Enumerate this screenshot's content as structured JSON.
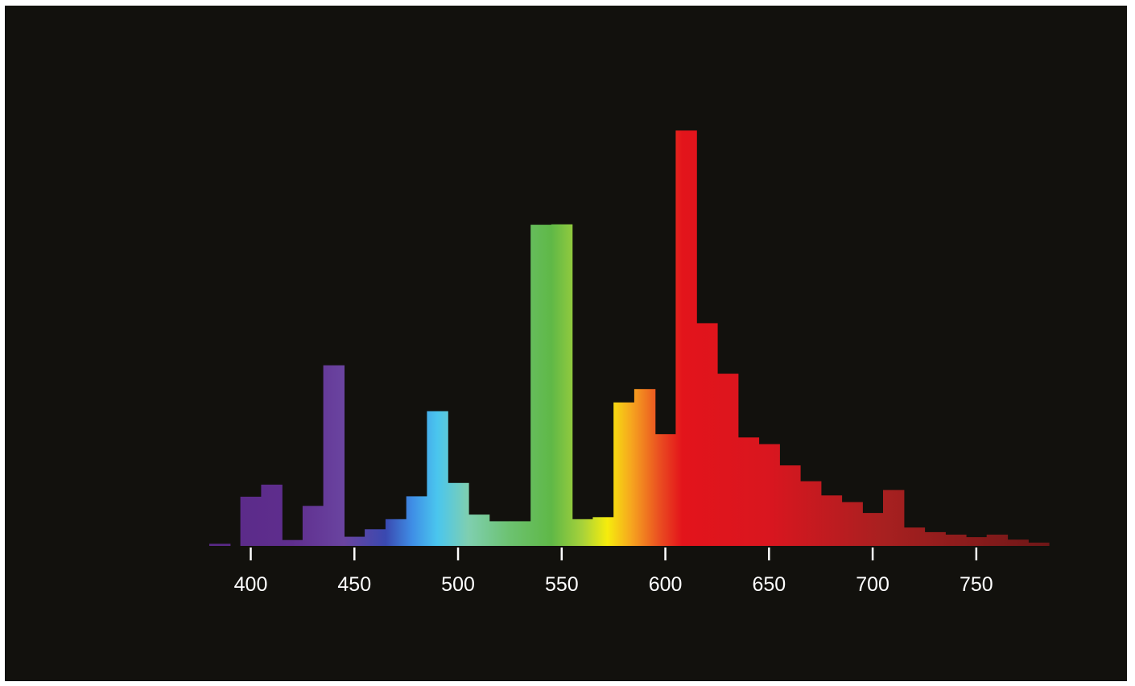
{
  "chart_data": {
    "type": "bar",
    "title": "",
    "xlabel": "",
    "ylabel": "",
    "x_unit": "",
    "xlim": [
      380,
      785
    ],
    "ylim": [
      0,
      100
    ],
    "x_ticks": [
      400,
      450,
      500,
      550,
      600,
      650,
      700,
      750
    ],
    "x_tick_labels": [
      "400",
      "450",
      "500",
      "550",
      "600",
      "650",
      "700",
      "750"
    ],
    "grid": false,
    "legend": "none",
    "bin_width_nm": 10,
    "bins": [
      {
        "start": 380,
        "value": 0.5
      },
      {
        "start": 395,
        "value": 11.8
      },
      {
        "start": 405,
        "value": 14.7
      },
      {
        "start": 415,
        "value": 1.4
      },
      {
        "start": 425,
        "value": 9.6
      },
      {
        "start": 435,
        "value": 43.3
      },
      {
        "start": 445,
        "value": 2.2
      },
      {
        "start": 455,
        "value": 4.0
      },
      {
        "start": 465,
        "value": 6.4
      },
      {
        "start": 475,
        "value": 11.9
      },
      {
        "start": 485,
        "value": 32.3
      },
      {
        "start": 495,
        "value": 15.1
      },
      {
        "start": 505,
        "value": 7.5
      },
      {
        "start": 515,
        "value": 5.9
      },
      {
        "start": 525,
        "value": 5.9
      },
      {
        "start": 535,
        "value": 77.0
      },
      {
        "start": 545,
        "value": 77.1
      },
      {
        "start": 555,
        "value": 6.4
      },
      {
        "start": 565,
        "value": 6.9
      },
      {
        "start": 575,
        "value": 34.4
      },
      {
        "start": 585,
        "value": 37.6
      },
      {
        "start": 595,
        "value": 26.8
      },
      {
        "start": 605,
        "value": 99.6
      },
      {
        "start": 615,
        "value": 53.4
      },
      {
        "start": 625,
        "value": 41.3
      },
      {
        "start": 635,
        "value": 26.0
      },
      {
        "start": 645,
        "value": 24.4
      },
      {
        "start": 655,
        "value": 19.3
      },
      {
        "start": 665,
        "value": 15.5
      },
      {
        "start": 675,
        "value": 12.1
      },
      {
        "start": 685,
        "value": 10.5
      },
      {
        "start": 695,
        "value": 7.9
      },
      {
        "start": 705,
        "value": 13.4
      },
      {
        "start": 715,
        "value": 4.4
      },
      {
        "start": 725,
        "value": 3.3
      },
      {
        "start": 735,
        "value": 2.7
      },
      {
        "start": 745,
        "value": 2.1
      },
      {
        "start": 755,
        "value": 2.7
      },
      {
        "start": 765,
        "value": 1.5
      },
      {
        "start": 775,
        "value": 0.8
      }
    ],
    "colors": {
      "background": "#12110d",
      "text": "#ffffff",
      "spectrum_stops": [
        {
          "nm": 385,
          "color": "#5a2a88"
        },
        {
          "nm": 420,
          "color": "#5f2e8e"
        },
        {
          "nm": 445,
          "color": "#6a44a0"
        },
        {
          "nm": 465,
          "color": "#3a49b0"
        },
        {
          "nm": 478,
          "color": "#3f8fe6"
        },
        {
          "nm": 490,
          "color": "#4ac6ee"
        },
        {
          "nm": 505,
          "color": "#7fcfb0"
        },
        {
          "nm": 525,
          "color": "#6cc270"
        },
        {
          "nm": 545,
          "color": "#5fb847"
        },
        {
          "nm": 560,
          "color": "#a7d23a"
        },
        {
          "nm": 572,
          "color": "#f6ec0d"
        },
        {
          "nm": 584,
          "color": "#f6a31f"
        },
        {
          "nm": 597,
          "color": "#ea4f21"
        },
        {
          "nm": 608,
          "color": "#e3141b"
        },
        {
          "nm": 650,
          "color": "#d9161f"
        },
        {
          "nm": 705,
          "color": "#a82020"
        },
        {
          "nm": 785,
          "color": "#6e1717"
        }
      ]
    }
  }
}
